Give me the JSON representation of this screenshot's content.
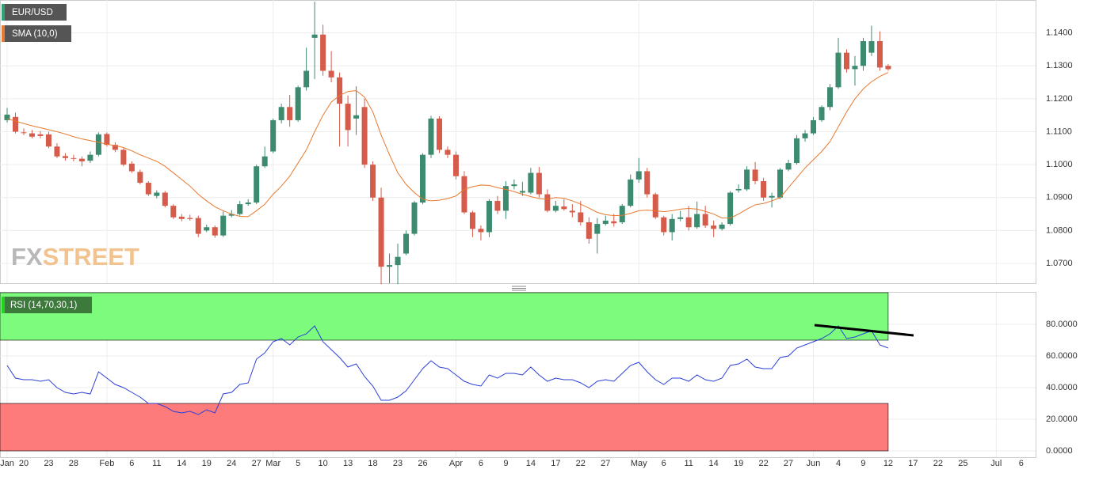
{
  "chart_data": [
    {
      "type": "candlestick",
      "categories": [
        "Jan",
        null,
        "20",
        null,
        null,
        "23",
        null,
        null,
        "28",
        null,
        null,
        null,
        "Feb",
        null,
        null,
        "6",
        null,
        null,
        "11",
        null,
        null,
        "14",
        null,
        null,
        "19",
        null,
        null,
        "24",
        null,
        null,
        "27",
        null,
        "Mar",
        null,
        null,
        "5",
        null,
        null,
        "10",
        null,
        null,
        "13",
        null,
        null,
        "18",
        null,
        null,
        "23",
        null,
        null,
        "26",
        null,
        null,
        null,
        "Apr",
        null,
        null,
        "6",
        null,
        null,
        "9",
        null,
        null,
        "14",
        null,
        null,
        "17",
        null,
        null,
        "22",
        null,
        null,
        "27",
        null,
        null,
        null,
        "May",
        null,
        null,
        "6",
        null,
        null,
        "11",
        null,
        null,
        "14",
        null,
        null,
        "19",
        null,
        null,
        "22",
        null,
        null,
        "27",
        null,
        null,
        "Jun",
        null,
        null,
        "4",
        null,
        null,
        "9",
        null,
        null,
        "12",
        null,
        null,
        "17",
        null,
        null,
        "22",
        null,
        null,
        "25",
        null,
        null,
        null,
        "Jul",
        null,
        null,
        "6",
        null
      ],
      "ylim": [
        1.064,
        1.15
      ],
      "yticks": [
        {
          "value": 1.07,
          "label": "1.0700"
        },
        {
          "value": 1.08,
          "label": "1.0800"
        },
        {
          "value": 1.09,
          "label": "1.0900"
        },
        {
          "value": 1.1,
          "label": "1.1000"
        },
        {
          "value": 1.11,
          "label": "1.1100"
        },
        {
          "value": 1.12,
          "label": "1.1200"
        },
        {
          "value": 1.13,
          "label": "1.1300"
        },
        {
          "value": 1.14,
          "label": "1.1400"
        }
      ],
      "grid": true,
      "watermark": [
        "FX",
        "STREET"
      ],
      "series": [
        {
          "name": "EUR/USD",
          "up_color": "#3d8b6e",
          "down_color": "#d55b4a",
          "open": [
            1.1135,
            1.1145,
            1.1098,
            1.1095,
            1.1092,
            1.1092,
            1.1055,
            1.1026,
            1.102,
            1.1018,
            1.1012,
            1.103,
            1.1093,
            1.106,
            1.1045,
            1.1003,
            1.0978,
            1.0945,
            1.0905,
            1.0915,
            1.0875,
            1.0842,
            1.0838,
            1.0838,
            1.08,
            1.081,
            1.0785,
            1.0845,
            1.085,
            1.088,
            1.0885,
            1.0995,
            1.104,
            1.1135,
            1.1175,
            1.1135,
            1.1235,
            1.1385,
            1.1395,
            1.1285,
            1.1265,
            1.1185,
            1.114,
            1.1175,
            1.1,
            1.09,
            1.069,
            1.0695,
            1.073,
            1.079,
            1.0885,
            1.103,
            1.114,
            1.1045,
            1.103,
            1.0965,
            1.0855,
            1.0805,
            1.0795,
            1.089,
            1.086,
            1.0935,
            1.0915,
            1.0915,
            1.0975,
            1.091,
            1.086,
            1.0873,
            1.086,
            1.0855,
            1.0825,
            1.079,
            1.082,
            1.0828,
            1.0825,
            1.0875,
            1.0955,
            1.098,
            1.091,
            1.084,
            1.0795,
            1.0835,
            1.084,
            1.081,
            1.085,
            1.0815,
            1.0805,
            1.082,
            1.0922,
            1.0925,
            1.0985,
            1.095,
            1.09,
            1.09,
            1.0985,
            1.1005,
            1.108,
            1.1095,
            1.1135,
            1.1175,
            1.1235,
            1.134,
            1.129,
            1.13,
            1.134,
            1.1375,
            1.13,
            null,
            null,
            null,
            null,
            null,
            null,
            null,
            null,
            null,
            null,
            null,
            null,
            null,
            null,
            null,
            null,
            null
          ],
          "high": [
            1.1172,
            1.1158,
            1.111,
            1.1105,
            1.1102,
            1.11,
            1.1065,
            1.1035,
            1.103,
            1.1025,
            1.104,
            1.1098,
            1.1098,
            1.1068,
            1.105,
            1.101,
            1.0985,
            1.095,
            1.0922,
            1.092,
            1.088,
            1.085,
            1.0848,
            1.0845,
            1.0818,
            1.0815,
            1.0858,
            1.0862,
            1.089,
            1.0895,
            1.1,
            1.1055,
            1.114,
            1.1185,
            1.1212,
            1.124,
            1.1355,
            1.1495,
            1.1425,
            1.1345,
            1.128,
            1.121,
            1.1238,
            1.12,
            1.101,
            1.093,
            1.073,
            1.076,
            1.08,
            1.089,
            1.1035,
            1.1148,
            1.1147,
            1.1055,
            1.104,
            1.098,
            1.086,
            1.0815,
            1.0895,
            1.0905,
            1.095,
            1.0955,
            1.0948,
            1.099,
            1.0993,
            1.0925,
            1.089,
            1.0895,
            1.088,
            1.089,
            1.084,
            1.0838,
            1.0845,
            1.085,
            1.088,
            1.097,
            1.102,
            1.099,
            1.0915,
            1.0845,
            1.085,
            1.086,
            1.0875,
            1.0888,
            1.0875,
            1.083,
            1.0825,
            1.092,
            1.094,
            1.0995,
            1.1008,
            1.096,
            1.0915,
            1.099,
            1.1015,
            1.109,
            1.1105,
            1.1145,
            1.118,
            1.1245,
            1.1385,
            1.135,
            1.133,
            1.1385,
            1.1422,
            1.1405,
            1.1305,
            null,
            null,
            null,
            null,
            null,
            null,
            null,
            null,
            null,
            null,
            null,
            null,
            null,
            null,
            null,
            null,
            null
          ],
          "low": [
            1.1128,
            1.1095,
            1.109,
            1.108,
            1.108,
            1.105,
            1.102,
            1.1012,
            1.101,
            1.0995,
            1.1005,
            1.1025,
            1.1055,
            1.1038,
            1.0995,
            1.0975,
            1.094,
            1.0905,
            1.0898,
            1.087,
            1.0835,
            1.0828,
            1.083,
            1.078,
            1.0795,
            1.0778,
            1.078,
            1.084,
            1.0845,
            1.0875,
            1.088,
            1.099,
            1.1035,
            1.1125,
            1.1115,
            1.113,
            1.1225,
            1.126,
            1.127,
            1.125,
            1.1055,
            1.1055,
            1.109,
            1.099,
            1.089,
            1.0637,
            1.064,
            1.0637,
            1.0725,
            1.0785,
            1.088,
            1.102,
            1.1035,
            1.102,
            1.0955,
            1.085,
            1.078,
            1.077,
            1.078,
            1.085,
            1.0835,
            1.0925,
            1.0905,
            1.091,
            1.09,
            1.0855,
            1.0855,
            1.086,
            1.084,
            1.0815,
            1.076,
            1.073,
            1.0815,
            1.0812,
            1.082,
            1.087,
            1.0945,
            1.09,
            1.0835,
            1.0785,
            1.077,
            1.0828,
            1.08,
            1.0805,
            1.0808,
            1.078,
            1.08,
            1.0815,
            1.0915,
            1.092,
            1.094,
            1.089,
            1.087,
            1.0895,
            1.098,
            1.1,
            1.107,
            1.109,
            1.113,
            1.1165,
            1.123,
            1.128,
            1.124,
            1.1285,
            1.133,
            1.1285,
            1.1285,
            null,
            null,
            null,
            null,
            null,
            null,
            null,
            null,
            null,
            null,
            null,
            null,
            null,
            null,
            null,
            null,
            null
          ],
          "close": [
            1.1152,
            1.11,
            1.1096,
            1.1085,
            1.1087,
            1.1055,
            1.1025,
            1.102,
            1.1018,
            1.101,
            1.103,
            1.1092,
            1.106,
            1.1045,
            1.1,
            1.098,
            1.0945,
            1.091,
            1.0915,
            1.0875,
            1.084,
            1.0835,
            1.0835,
            1.079,
            1.081,
            1.0785,
            1.0845,
            1.085,
            1.088,
            1.0885,
            1.0995,
            1.1025,
            1.1135,
            1.1175,
            1.1135,
            1.1235,
            1.1285,
            1.1395,
            1.1285,
            1.1265,
            1.1185,
            1.1105,
            1.115,
            1.1,
            1.09,
            1.069,
            1.0695,
            1.072,
            1.079,
            1.0885,
            1.103,
            1.114,
            1.1045,
            1.103,
            1.0965,
            1.0855,
            1.0805,
            1.0795,
            1.089,
            1.086,
            1.0935,
            1.094,
            1.092,
            1.0975,
            1.091,
            1.086,
            1.0875,
            1.0865,
            1.0855,
            1.0825,
            1.0775,
            1.082,
            1.083,
            1.0822,
            1.0875,
            1.0955,
            1.098,
            1.091,
            1.084,
            1.0795,
            1.0835,
            1.084,
            1.081,
            1.085,
            1.0815,
            1.0805,
            1.0818,
            1.0915,
            1.0926,
            1.0985,
            1.095,
            1.09,
            1.0905,
            1.0985,
            1.1005,
            1.108,
            1.1095,
            1.1135,
            1.1175,
            1.1235,
            1.134,
            1.129,
            1.13,
            1.1375,
            1.1375,
            1.1295,
            1.129,
            null,
            null,
            null,
            null,
            null,
            null,
            null,
            null,
            null,
            null,
            null,
            null,
            null,
            null,
            null,
            null,
            null
          ]
        },
        {
          "name": "SMA (10,0)",
          "type": "line",
          "color": "#e8792e",
          "values": [
            1.114,
            1.1132,
            1.1125,
            1.1118,
            1.1112,
            1.1106,
            1.11,
            1.1093,
            1.1085,
            1.1078,
            1.1073,
            1.1068,
            1.1062,
            1.1058,
            1.1052,
            1.1042,
            1.103,
            1.102,
            1.101,
            1.0995,
            1.0975,
            1.0955,
            1.0935,
            1.091,
            1.089,
            1.0872,
            1.086,
            1.085,
            1.0843,
            1.0842,
            1.086,
            1.088,
            1.091,
            1.0935,
            1.0965,
            1.1005,
            1.1045,
            1.11,
            1.115,
            1.119,
            1.121,
            1.1222,
            1.1225,
            1.1205,
            1.116,
            1.109,
            1.103,
            1.0975,
            1.094,
            1.0915,
            1.0895,
            1.089,
            1.0892,
            1.0897,
            1.0905,
            1.0925,
            1.0933,
            1.0938,
            1.0937,
            1.093,
            1.0925,
            1.0918,
            1.091,
            1.0903,
            1.0897,
            1.0895,
            1.09,
            1.0898,
            1.089,
            1.088,
            1.0868,
            1.0855,
            1.0848,
            1.0845,
            1.0846,
            1.0852,
            1.086,
            1.0862,
            1.086,
            1.0857,
            1.086,
            1.0865,
            1.0867,
            1.0865,
            1.0858,
            1.085,
            1.0838,
            1.0838,
            1.085,
            1.0865,
            1.0878,
            1.0882,
            1.089,
            1.09,
            1.093,
            1.096,
            1.099,
            1.1015,
            1.104,
            1.107,
            1.1115,
            1.116,
            1.12,
            1.123,
            1.1252,
            1.1268,
            1.128,
            null,
            null,
            null,
            null,
            null,
            null,
            null,
            null,
            null,
            null,
            null,
            null,
            null,
            null,
            null,
            null,
            null
          ]
        }
      ]
    },
    {
      "type": "line",
      "ylim": [
        0,
        100
      ],
      "yticks": [
        {
          "value": 0,
          "label": "0.0000"
        },
        {
          "value": 20,
          "label": "20.0000"
        },
        {
          "value": 40,
          "label": "40.0000"
        },
        {
          "value": 60,
          "label": "60.0000"
        },
        {
          "value": 80,
          "label": "80.0000"
        }
      ],
      "overbought": 70,
      "oversold": 30,
      "band_colors": [
        "#7dfb7d",
        "#fd7b7b"
      ],
      "series": [
        {
          "name": "RSI (14,70,30,1)",
          "color": "#2b3fd8",
          "values": [
            54,
            46,
            45,
            45,
            44,
            45,
            40,
            37,
            36,
            37,
            36,
            50,
            46,
            42,
            40,
            37,
            34,
            30,
            30,
            28,
            25,
            24,
            25,
            23,
            26,
            24,
            36,
            37,
            42,
            43,
            58,
            62,
            69,
            71,
            67,
            72,
            74,
            79,
            69,
            64,
            59,
            53,
            55,
            47,
            41,
            32,
            32,
            34,
            38,
            45,
            52,
            57,
            53,
            52,
            48,
            44,
            42,
            41,
            48,
            46,
            49,
            49,
            48,
            53,
            48,
            44,
            46,
            45,
            45,
            43,
            40,
            44,
            45,
            44,
            49,
            54,
            56,
            50,
            45,
            42,
            46,
            46,
            44,
            48,
            45,
            44,
            46,
            54,
            55,
            58,
            53,
            52,
            52,
            59,
            60,
            65,
            67,
            69,
            71,
            74,
            79,
            71,
            72,
            74,
            76,
            67,
            65,
            null,
            null,
            null,
            null,
            null,
            null,
            null,
            null,
            null,
            null,
            null,
            null,
            null,
            null,
            null,
            null,
            null
          ]
        }
      ]
    }
  ]
}
